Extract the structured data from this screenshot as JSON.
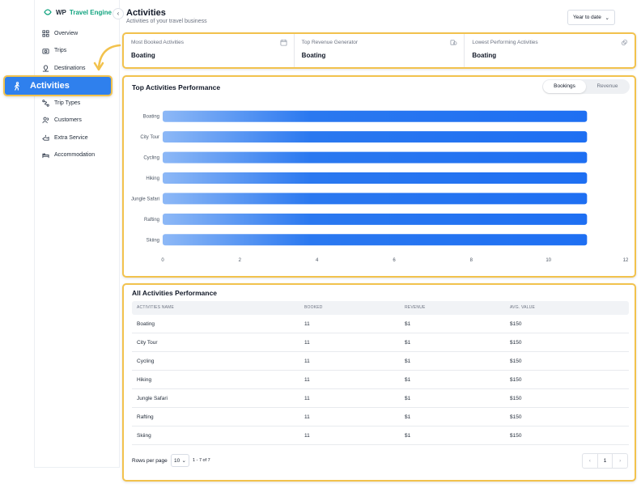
{
  "brand": {
    "wp": "WP",
    "te": "Travel Engine"
  },
  "header": {
    "title": "Activities",
    "subtitle": "Activities of your travel business",
    "range": "Year to date"
  },
  "sidebar": {
    "items": [
      {
        "label": "Overview",
        "icon": "grid-icon"
      },
      {
        "label": "Trips",
        "icon": "camera-icon"
      },
      {
        "label": "Destinations",
        "icon": "pin-icon"
      },
      {
        "label": "Trip Types",
        "icon": "route-icon"
      },
      {
        "label": "Customers",
        "icon": "users-icon"
      },
      {
        "label": "Extra Service",
        "icon": "service-icon"
      },
      {
        "label": "Accommodation",
        "icon": "bed-icon"
      }
    ],
    "active": {
      "label": "Activities",
      "icon": "hiker-icon"
    }
  },
  "stats": [
    {
      "label": "Most Booked Activities",
      "value": "Boating"
    },
    {
      "label": "Top Revenue Generator",
      "value": "Boating"
    },
    {
      "label": "Lowest Performing Activities",
      "value": "Boating"
    }
  ],
  "chart_card": {
    "title": "Top Activities Performance",
    "tab_bookings": "Bookings",
    "tab_revenue": "Revenue"
  },
  "chart_data": {
    "type": "bar",
    "orientation": "horizontal",
    "categories": [
      "Boating",
      "City Tour",
      "Cycling",
      "Hiking",
      "Jungle Safari",
      "Rafting",
      "Skiing"
    ],
    "values": [
      11,
      11,
      11,
      11,
      11,
      11,
      11
    ],
    "xlim": [
      0,
      12
    ],
    "xticks": [
      0,
      2,
      4,
      6,
      8,
      10,
      12
    ],
    "grid": false,
    "bar_color": "#1e6ff2"
  },
  "table": {
    "title": "All Activities Performance",
    "headers": [
      "ACTIVITIES NAME",
      "BOOKED",
      "REVENUE",
      "AVG. VALUE"
    ],
    "rows": [
      [
        "Boating",
        "11",
        "$1",
        "$150"
      ],
      [
        "City Tour",
        "11",
        "$1",
        "$150"
      ],
      [
        "Cycling",
        "11",
        "$1",
        "$150"
      ],
      [
        "Hiking",
        "11",
        "$1",
        "$150"
      ],
      [
        "Jungle Safari",
        "11",
        "$1",
        "$150"
      ],
      [
        "Rafting",
        "11",
        "$1",
        "$150"
      ],
      [
        "Skiing",
        "11",
        "$1",
        "$150"
      ]
    ],
    "rows_per_page_label": "Rows per page",
    "rows_per_page": "10",
    "range": "1 - 7 of 7",
    "page": "1"
  },
  "colors": {
    "accent": "#2f80ed",
    "highlight": "#f2c24d",
    "brand_green": "#10a37f"
  }
}
